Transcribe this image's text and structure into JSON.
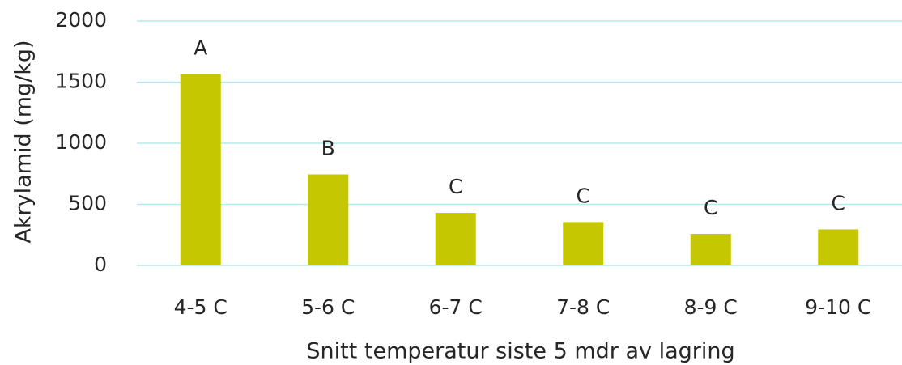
{
  "chart_data": {
    "type": "bar",
    "x_label": "Snitt temperatur siste 5 mdr av lagring",
    "y_label": "Akrylamid (mg/kg)",
    "categories": [
      "4-5 C",
      "5-6 C",
      "6-7 C",
      "7-8 C",
      "8-9 C",
      "9-10 C"
    ],
    "values": [
      1565,
      745,
      430,
      355,
      258,
      295
    ],
    "annotations": [
      "A",
      "B",
      "C",
      "C",
      "C",
      "C"
    ],
    "color": "#c5c800",
    "ylim": [
      0,
      2000
    ],
    "yticks": [
      0,
      500,
      1000,
      1500,
      2000
    ],
    "grid": true
  }
}
